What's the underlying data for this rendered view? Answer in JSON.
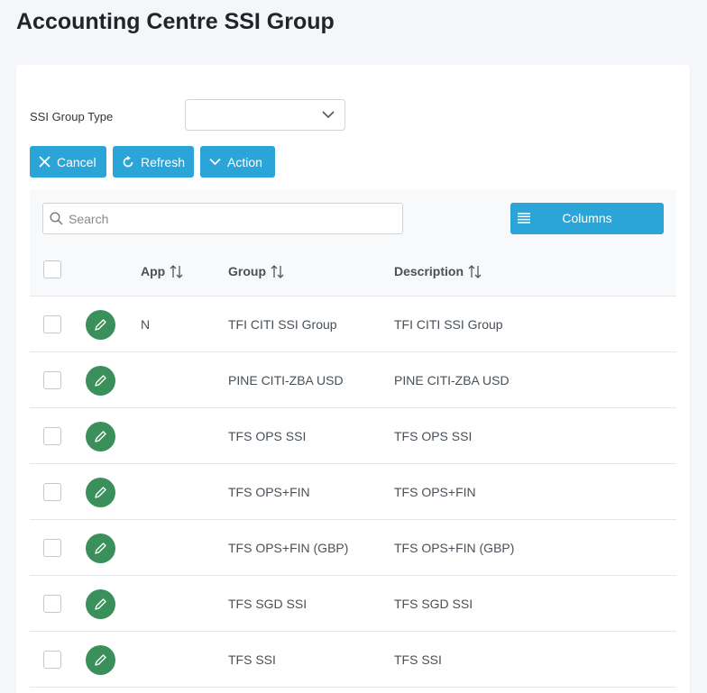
{
  "page": {
    "title": "Accounting Centre SSI Group"
  },
  "filter": {
    "label": "SSI Group Type",
    "value": ""
  },
  "buttons": {
    "cancel": "Cancel",
    "refresh": "Refresh",
    "action": "Action"
  },
  "search": {
    "placeholder": "Search",
    "value": ""
  },
  "columns_button": "Columns",
  "table": {
    "headers": {
      "app": "App",
      "group": "Group",
      "description": "Description"
    },
    "rows": [
      {
        "app": "N",
        "group": "TFI CITI SSI Group",
        "description": "TFI CITI SSI Group"
      },
      {
        "app": "",
        "group": "PINE CITI-ZBA USD",
        "description": "PINE CITI-ZBA USD"
      },
      {
        "app": "",
        "group": "TFS OPS SSI",
        "description": "TFS OPS SSI"
      },
      {
        "app": "",
        "group": "TFS OPS+FIN",
        "description": "TFS OPS+FIN"
      },
      {
        "app": "",
        "group": "TFS OPS+FIN (GBP)",
        "description": "TFS OPS+FIN (GBP)"
      },
      {
        "app": "",
        "group": "TFS SGD SSI",
        "description": "TFS SGD SSI"
      },
      {
        "app": "",
        "group": "TFS SSI",
        "description": "TFS SSI"
      }
    ]
  },
  "icons": {
    "cancel": "close-icon",
    "refresh": "refresh-icon",
    "action": "chevron-down-icon",
    "search": "search-icon",
    "columns": "list-icon",
    "sort": "sort-icon",
    "edit": "pencil-icon"
  },
  "colors": {
    "primary": "#2ba5d8",
    "edit": "#3a8f5a",
    "background": "#f4f6f9"
  }
}
